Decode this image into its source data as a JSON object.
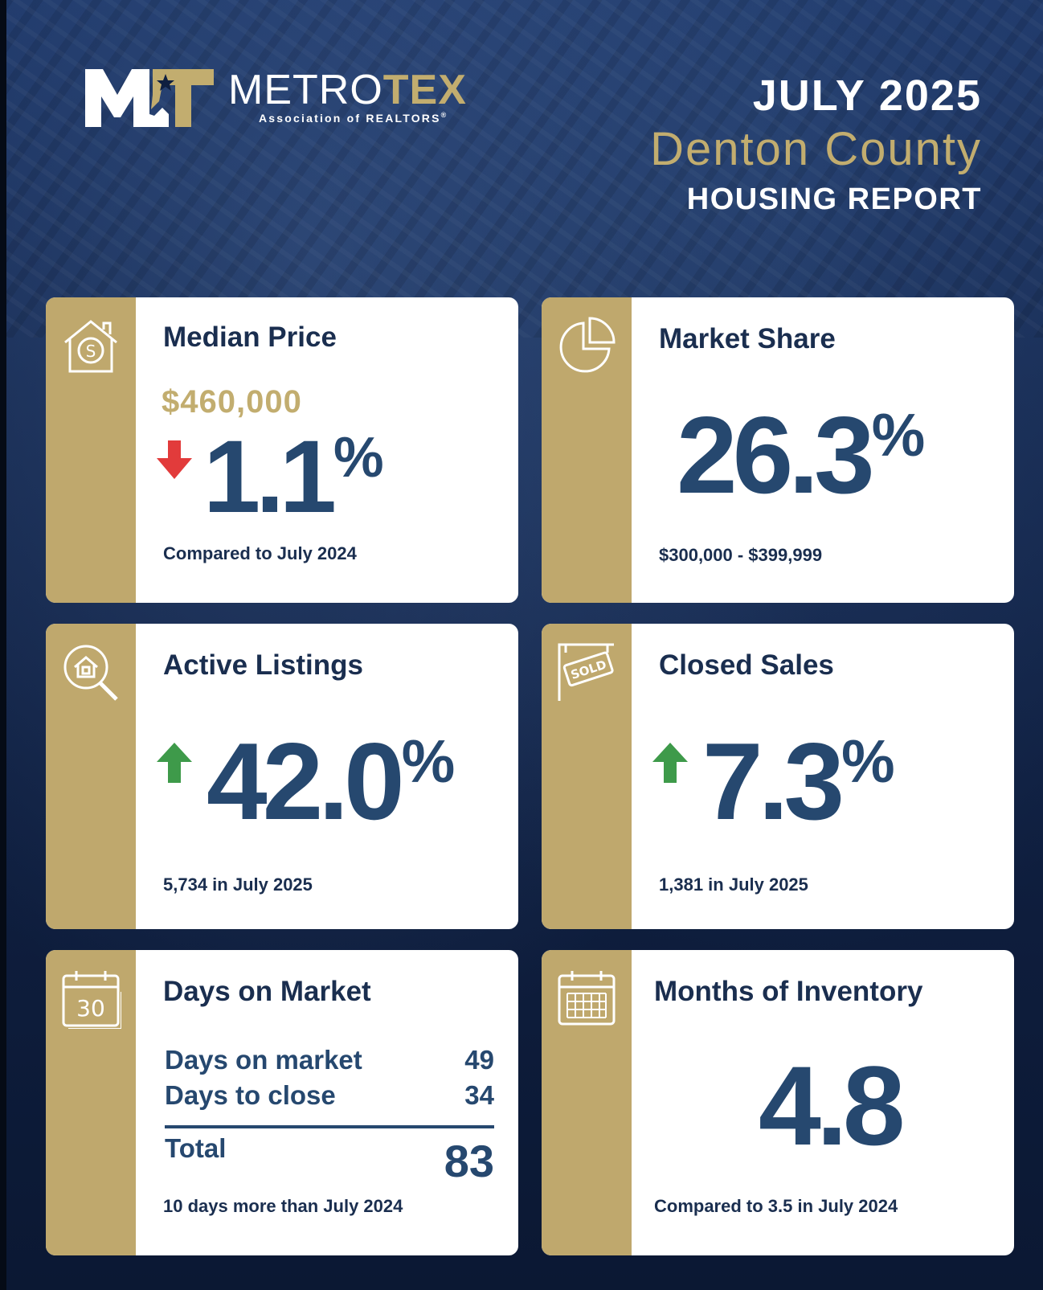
{
  "brand": {
    "name_light": "METRO",
    "name_bold": "TEX",
    "subtitle": "Association of REALTORS",
    "registered_mark": "®",
    "colors": {
      "gold": "#bfa86d",
      "navy": "#1a2e4f",
      "value_blue": "#26486f",
      "down_red": "#e23b3b",
      "up_green": "#3e9a4a"
    }
  },
  "header": {
    "period": "JULY 2025",
    "county": "Denton County",
    "report": "HOUSING REPORT"
  },
  "cards": {
    "median_price": {
      "icon": "house-dollar-icon",
      "title": "Median Price",
      "price": "$460,000",
      "direction": "down",
      "change_value": "1.1",
      "change_unit": "%",
      "note": "Compared to July 2024"
    },
    "market_share": {
      "icon": "pie-chart-icon",
      "title": "Market Share",
      "value": "26.3",
      "unit": "%",
      "note": "$300,000 - $399,999"
    },
    "active_listings": {
      "icon": "house-search-icon",
      "title": "Active Listings",
      "direction": "up",
      "change_value": "42.0",
      "change_unit": "%",
      "note": "5,734 in July 2025"
    },
    "closed_sales": {
      "icon": "sold-sign-icon",
      "title": "Closed Sales",
      "sign_text": "SOLD",
      "direction": "up",
      "change_value": "7.3",
      "change_unit": "%",
      "note": "1,381 in July 2025"
    },
    "days_on_market": {
      "icon": "calendar-30-icon",
      "icon_text": "30",
      "title": "Days on Market",
      "rows": [
        {
          "label": "Days on market",
          "value": "49"
        },
        {
          "label": "Days to close",
          "value": "34"
        }
      ],
      "total_label": "Total",
      "total_value": "83",
      "note": "10 days more than July 2024"
    },
    "months_inventory": {
      "icon": "calendar-grid-icon",
      "title": "Months of Inventory",
      "value": "4.8",
      "note": "Compared to 3.5 in July 2024"
    }
  }
}
